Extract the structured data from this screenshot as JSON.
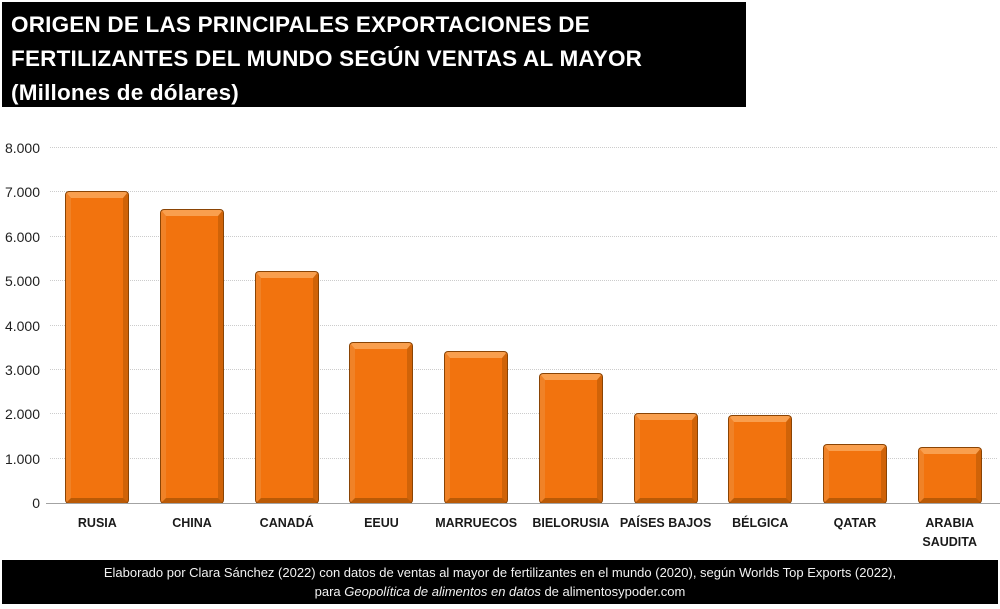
{
  "title": {
    "lines": [
      "ORIGEN DE LAS PRINCIPALES EXPORTACIONES DE",
      "FERTILIZANTES DEL MUNDO SEGÚN VENTAS AL MAYOR",
      "(Millones de dólares)"
    ]
  },
  "footer": {
    "line1": "Elaborado por Clara Sánchez (2022) con datos de ventas al mayor de fertilizantes en el mundo (2020), según Worlds Top Exports (2022),",
    "line2_pre": "para ",
    "line2_italic": "Geopolítica de alimentos en datos",
    "line2_post": " de alimentosypoder.com"
  },
  "chart_data": {
    "type": "bar",
    "title": "ORIGEN DE LAS PRINCIPALES EXPORTACIONES DE FERTILIZANTES DEL MUNDO SEGÚN VENTAS AL MAYOR (Millones de dólares)",
    "categories": [
      "RUSIA",
      "CHINA",
      "CANADÁ",
      "EEUU",
      "MARRUECOS",
      "BIELORUSIA",
      "PAÍSES BAJOS",
      "BÉLGICA",
      "QATAR",
      "ARABIA SAUDITA"
    ],
    "values": [
      7000,
      6600,
      5200,
      3600,
      3400,
      2900,
      2000,
      1950,
      1300,
      1250
    ],
    "xlabel": "",
    "ylabel": "",
    "ylim": [
      0,
      8000
    ],
    "ytick_interval": 1000,
    "ytick_labels": [
      "0",
      "1.000",
      "2.000",
      "3.000",
      "4.000",
      "5.000",
      "6.000",
      "7.000",
      "8.000"
    ],
    "grid": "horizontal-dotted",
    "legend": "none",
    "bar_color": "#f2730e",
    "bar_bevel_light": "#f99f4e",
    "bar_bevel_dark": "#ba5a06",
    "bar_outline_color": "#8a4404",
    "gridline_color": "#cccccc",
    "axis_line_color": "#a3a3a3"
  }
}
